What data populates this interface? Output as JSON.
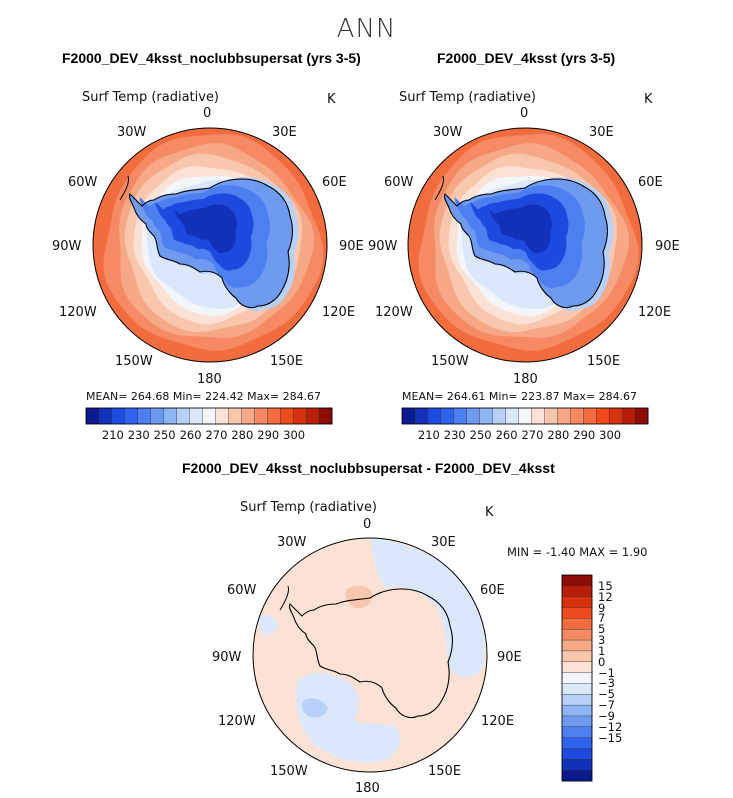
{
  "page": {
    "title": "ANN"
  },
  "colors": {
    "warm": [
      "#fbe2d4",
      "#f9c7ad",
      "#f7a886",
      "#f58a64",
      "#f26c3e",
      "#ee4a1c",
      "#d8310e",
      "#b81d08",
      "#8e0b03"
    ],
    "cold": [
      "#dbe8fb",
      "#b8d1f8",
      "#8fb6f4",
      "#6e9bef",
      "#4e7ff0",
      "#2f62ed",
      "#1e49de",
      "#1131b8",
      "#0a1a8c"
    ],
    "neutral": "#f2f5f9",
    "coast": "#000000"
  },
  "panels": [
    {
      "title": "F2000_DEV_4ksst_noclubbsupersat (yrs 3-5)",
      "variable": "Surf Temp (radiative)",
      "units": "K",
      "stats": "MEAN= 264.68   Min= 224.42   Max= 284.67"
    },
    {
      "title": "F2000_DEV_4ksst (yrs 3-5)",
      "variable": "Surf Temp (radiative)",
      "units": "K",
      "stats": "MEAN= 264.61   Min= 223.87   Max= 284.67"
    },
    {
      "title": "F2000_DEV_4ksst_noclubbsupersat - F2000_DEV_4ksst",
      "variable": "Surf Temp (radiative)",
      "units": "K",
      "stats": "MIN =   -1.40  MAX =    1.90"
    }
  ],
  "lon_labels": {
    "north": "0",
    "ne": "30E",
    "ene": "60E",
    "east": "90E",
    "ese": "120E",
    "se": "150E",
    "south": "180",
    "sw": "150W",
    "wsw": "120W",
    "west": "90W",
    "wnw": "60W",
    "nw": "30W"
  },
  "chart_data": [
    {
      "type": "heatmap",
      "projection": "south polar stereographic",
      "title": "F2000_DEV_4ksst_noclubbsupersat (yrs 3-5)",
      "variable": "Surf Temp (radiative)",
      "units": "K",
      "mean": 264.68,
      "min": 224.42,
      "max": 284.67,
      "colorbar": {
        "orientation": "horizontal",
        "ticks": [
          210,
          230,
          250,
          260,
          270,
          280,
          290,
          300
        ]
      }
    },
    {
      "type": "heatmap",
      "projection": "south polar stereographic",
      "title": "F2000_DEV_4ksst (yrs 3-5)",
      "variable": "Surf Temp (radiative)",
      "units": "K",
      "mean": 264.61,
      "min": 223.87,
      "max": 284.67,
      "colorbar": {
        "orientation": "horizontal",
        "ticks": [
          210,
          230,
          250,
          260,
          270,
          280,
          290,
          300
        ]
      }
    },
    {
      "type": "heatmap",
      "projection": "south polar stereographic",
      "title": "F2000_DEV_4ksst_noclubbsupersat - F2000_DEV_4ksst",
      "variable": "Surf Temp (radiative)",
      "units": "K",
      "min": -1.4,
      "max": 1.9,
      "colorbar": {
        "orientation": "vertical",
        "ticks": [
          15,
          12,
          9,
          7,
          5,
          3,
          1,
          0,
          -1,
          -3,
          -5,
          -7,
          -9,
          -12,
          -15
        ]
      }
    }
  ]
}
